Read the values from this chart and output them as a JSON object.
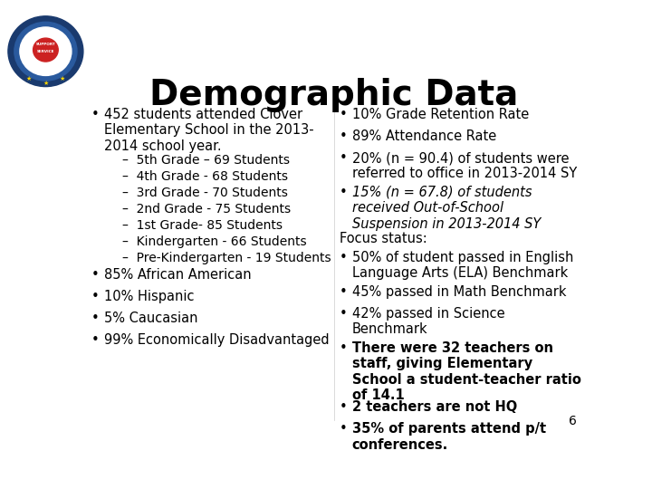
{
  "title": "Demographic Data",
  "title_fontsize": 28,
  "background_color": "#ffffff",
  "text_color": "#000000",
  "left_column": [
    {
      "type": "bullet",
      "level": 0,
      "text": "452 students attended Clover\nElementary School in the 2013-\n2014 school year."
    },
    {
      "type": "bullet",
      "level": 1,
      "text": "–  5th Grade – 69 Students"
    },
    {
      "type": "bullet",
      "level": 1,
      "text": "–  4th Grade - 68 Students"
    },
    {
      "type": "bullet",
      "level": 1,
      "text": "–  3rd Grade - 70 Students"
    },
    {
      "type": "bullet",
      "level": 1,
      "text": "–  2nd Grade - 75 Students"
    },
    {
      "type": "bullet",
      "level": 1,
      "text": "–  1st Grade- 85 Students"
    },
    {
      "type": "bullet",
      "level": 1,
      "text": "–  Kindergarten - 66 Students"
    },
    {
      "type": "bullet",
      "level": 1,
      "text": "–  Pre-Kindergarten - 19 Students"
    },
    {
      "type": "bullet",
      "level": 0,
      "text": "85% African American"
    },
    {
      "type": "bullet",
      "level": 0,
      "text": "10% Hispanic"
    },
    {
      "type": "bullet",
      "level": 0,
      "text": "5% Caucasian"
    },
    {
      "type": "bullet",
      "level": 0,
      "text": "99% Economically Disadvantaged"
    }
  ],
  "right_column": [
    {
      "type": "bullet",
      "level": 0,
      "text": "10% Grade Retention Rate"
    },
    {
      "type": "bullet",
      "level": 0,
      "text": "89% Attendance Rate"
    },
    {
      "type": "bullet",
      "level": 0,
      "text": "20% (n = 90.4) of students were\nreferred to office in 2013-2014 SY"
    },
    {
      "type": "bullet",
      "level": 0,
      "italic_part": true,
      "text": "15% (n = 67.8) of students\nreceived Out-of-School\nSuspension in 2013-2014 SY"
    },
    {
      "type": "label",
      "text": "Focus status:"
    },
    {
      "type": "bullet",
      "level": 0,
      "text": "50% of student passed in English\nLanguage Arts (ELA) Benchmark"
    },
    {
      "type": "bullet",
      "level": 0,
      "text": "45% passed in Math Benchmark"
    },
    {
      "type": "bullet",
      "level": 0,
      "text": "42% passed in Science\nBenchmark"
    },
    {
      "type": "bullet",
      "level": 0,
      "bold": true,
      "text": "There were 32 teachers on\nstaff, giving Elementary\nSchool a student-teacher ratio\nof 14.1"
    },
    {
      "type": "bullet",
      "level": 0,
      "bold": true,
      "text": "2 teachers are not HQ"
    },
    {
      "type": "bullet",
      "level": 0,
      "bold": true,
      "text": "35% of parents attend p/t\nconferences."
    }
  ],
  "page_number": "6",
  "bullet_fontsize": 10.5,
  "label_fontsize": 10.5
}
